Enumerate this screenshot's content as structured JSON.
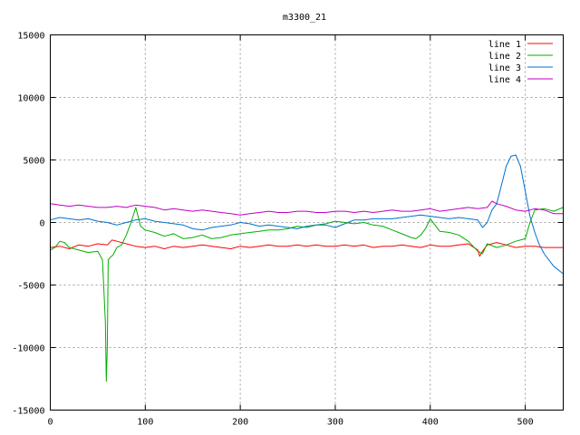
{
  "chart_data": {
    "type": "line",
    "title": "m3300_21",
    "xlabel": "",
    "ylabel": "",
    "xlim": [
      0,
      540
    ],
    "ylim": [
      -15000,
      15000
    ],
    "x_ticks": [
      0,
      100,
      200,
      300,
      400,
      500
    ],
    "y_ticks": [
      -15000,
      -10000,
      -5000,
      0,
      5000,
      10000,
      15000
    ],
    "grid": true,
    "legend_position": "top-right",
    "series": [
      {
        "name": "line 1",
        "color": "#ff0000",
        "x": [
          0,
          10,
          20,
          30,
          40,
          50,
          60,
          65,
          70,
          80,
          90,
          100,
          110,
          120,
          130,
          140,
          150,
          160,
          170,
          180,
          190,
          200,
          210,
          220,
          230,
          240,
          250,
          260,
          270,
          280,
          290,
          300,
          310,
          320,
          330,
          340,
          350,
          360,
          370,
          380,
          390,
          400,
          410,
          420,
          430,
          440,
          450,
          452,
          455,
          460,
          470,
          480,
          490,
          500,
          510,
          520,
          530,
          540
        ],
        "y": [
          -2000,
          -1900,
          -2100,
          -1800,
          -1900,
          -1700,
          -1800,
          -1400,
          -1500,
          -1700,
          -1900,
          -2000,
          -1900,
          -2100,
          -1900,
          -2000,
          -1900,
          -1800,
          -1900,
          -2000,
          -2100,
          -1900,
          -2000,
          -1900,
          -1800,
          -1900,
          -1900,
          -1800,
          -1900,
          -1800,
          -1900,
          -1900,
          -1800,
          -1900,
          -1800,
          -2000,
          -1900,
          -1900,
          -1800,
          -1900,
          -2000,
          -1800,
          -1900,
          -1900,
          -1800,
          -1700,
          -2200,
          -2700,
          -2300,
          -1800,
          -1600,
          -1800,
          -2000,
          -1900,
          -1900,
          -2000,
          -2000,
          -2000
        ]
      },
      {
        "name": "line 2",
        "color": "#00b000",
        "x": [
          0,
          5,
          10,
          15,
          20,
          30,
          40,
          50,
          55,
          58,
          59,
          60,
          61,
          63,
          66,
          70,
          75,
          80,
          85,
          90,
          95,
          100,
          110,
          120,
          130,
          140,
          150,
          160,
          170,
          180,
          190,
          200,
          210,
          220,
          230,
          240,
          250,
          260,
          270,
          280,
          290,
          300,
          310,
          320,
          330,
          340,
          350,
          360,
          370,
          380,
          385,
          390,
          395,
          400,
          410,
          420,
          430,
          440,
          450,
          455,
          460,
          470,
          480,
          490,
          500,
          505,
          510,
          520,
          530,
          540
        ],
        "y": [
          -2200,
          -2000,
          -1500,
          -1600,
          -2000,
          -2200,
          -2400,
          -2300,
          -3000,
          -8000,
          -12700,
          -10000,
          -3000,
          -2800,
          -2600,
          -2000,
          -1800,
          -1000,
          0,
          1200,
          -300,
          -600,
          -800,
          -1100,
          -900,
          -1300,
          -1200,
          -1000,
          -1300,
          -1200,
          -1000,
          -900,
          -800,
          -700,
          -600,
          -600,
          -500,
          -300,
          -400,
          -200,
          -100,
          100,
          0,
          -100,
          0,
          -200,
          -300,
          -600,
          -900,
          -1200,
          -1300,
          -1000,
          -500,
          300,
          -700,
          -800,
          -1000,
          -1500,
          -2300,
          -2500,
          -1700,
          -2000,
          -1800,
          -1500,
          -1300,
          0,
          1000,
          1100,
          900,
          1200
        ]
      },
      {
        "name": "line 3",
        "color": "#0070d0",
        "x": [
          0,
          10,
          20,
          30,
          40,
          50,
          60,
          70,
          80,
          90,
          100,
          110,
          120,
          130,
          140,
          150,
          160,
          170,
          180,
          190,
          200,
          210,
          220,
          230,
          240,
          250,
          260,
          270,
          280,
          290,
          300,
          310,
          320,
          330,
          340,
          350,
          360,
          370,
          380,
          390,
          400,
          410,
          420,
          430,
          440,
          450,
          455,
          460,
          465,
          470,
          475,
          480,
          485,
          490,
          495,
          500,
          505,
          510,
          515,
          520,
          530,
          540
        ],
        "y": [
          200,
          400,
          300,
          200,
          300,
          100,
          0,
          -200,
          0,
          200,
          300,
          100,
          0,
          -100,
          -200,
          -500,
          -600,
          -400,
          -300,
          -200,
          0,
          -100,
          -300,
          -200,
          -300,
          -400,
          -500,
          -300,
          -200,
          -200,
          -400,
          -100,
          200,
          200,
          300,
          300,
          300,
          400,
          500,
          600,
          500,
          400,
          300,
          400,
          300,
          200,
          -400,
          0,
          1000,
          1500,
          3000,
          4500,
          5300,
          5400,
          4500,
          2500,
          500,
          -800,
          -1800,
          -2500,
          -3500,
          -4100
        ]
      },
      {
        "name": "line 4",
        "color": "#c000c0",
        "x": [
          0,
          10,
          20,
          30,
          40,
          50,
          60,
          70,
          80,
          90,
          100,
          110,
          120,
          130,
          140,
          150,
          160,
          170,
          180,
          190,
          200,
          210,
          220,
          230,
          240,
          250,
          260,
          270,
          280,
          290,
          300,
          310,
          320,
          330,
          340,
          350,
          360,
          370,
          380,
          390,
          400,
          410,
          420,
          430,
          440,
          450,
          460,
          465,
          470,
          480,
          490,
          500,
          510,
          520,
          530,
          540
        ],
        "y": [
          1500,
          1400,
          1300,
          1400,
          1300,
          1200,
          1200,
          1300,
          1200,
          1400,
          1300,
          1200,
          1000,
          1100,
          1000,
          900,
          1000,
          900,
          800,
          700,
          600,
          700,
          800,
          900,
          800,
          800,
          900,
          900,
          800,
          800,
          900,
          900,
          800,
          900,
          800,
          900,
          1000,
          900,
          900,
          1000,
          1100,
          900,
          1000,
          1100,
          1200,
          1100,
          1200,
          1700,
          1500,
          1300,
          1000,
          900,
          1100,
          1000,
          700,
          700
        ]
      }
    ]
  }
}
